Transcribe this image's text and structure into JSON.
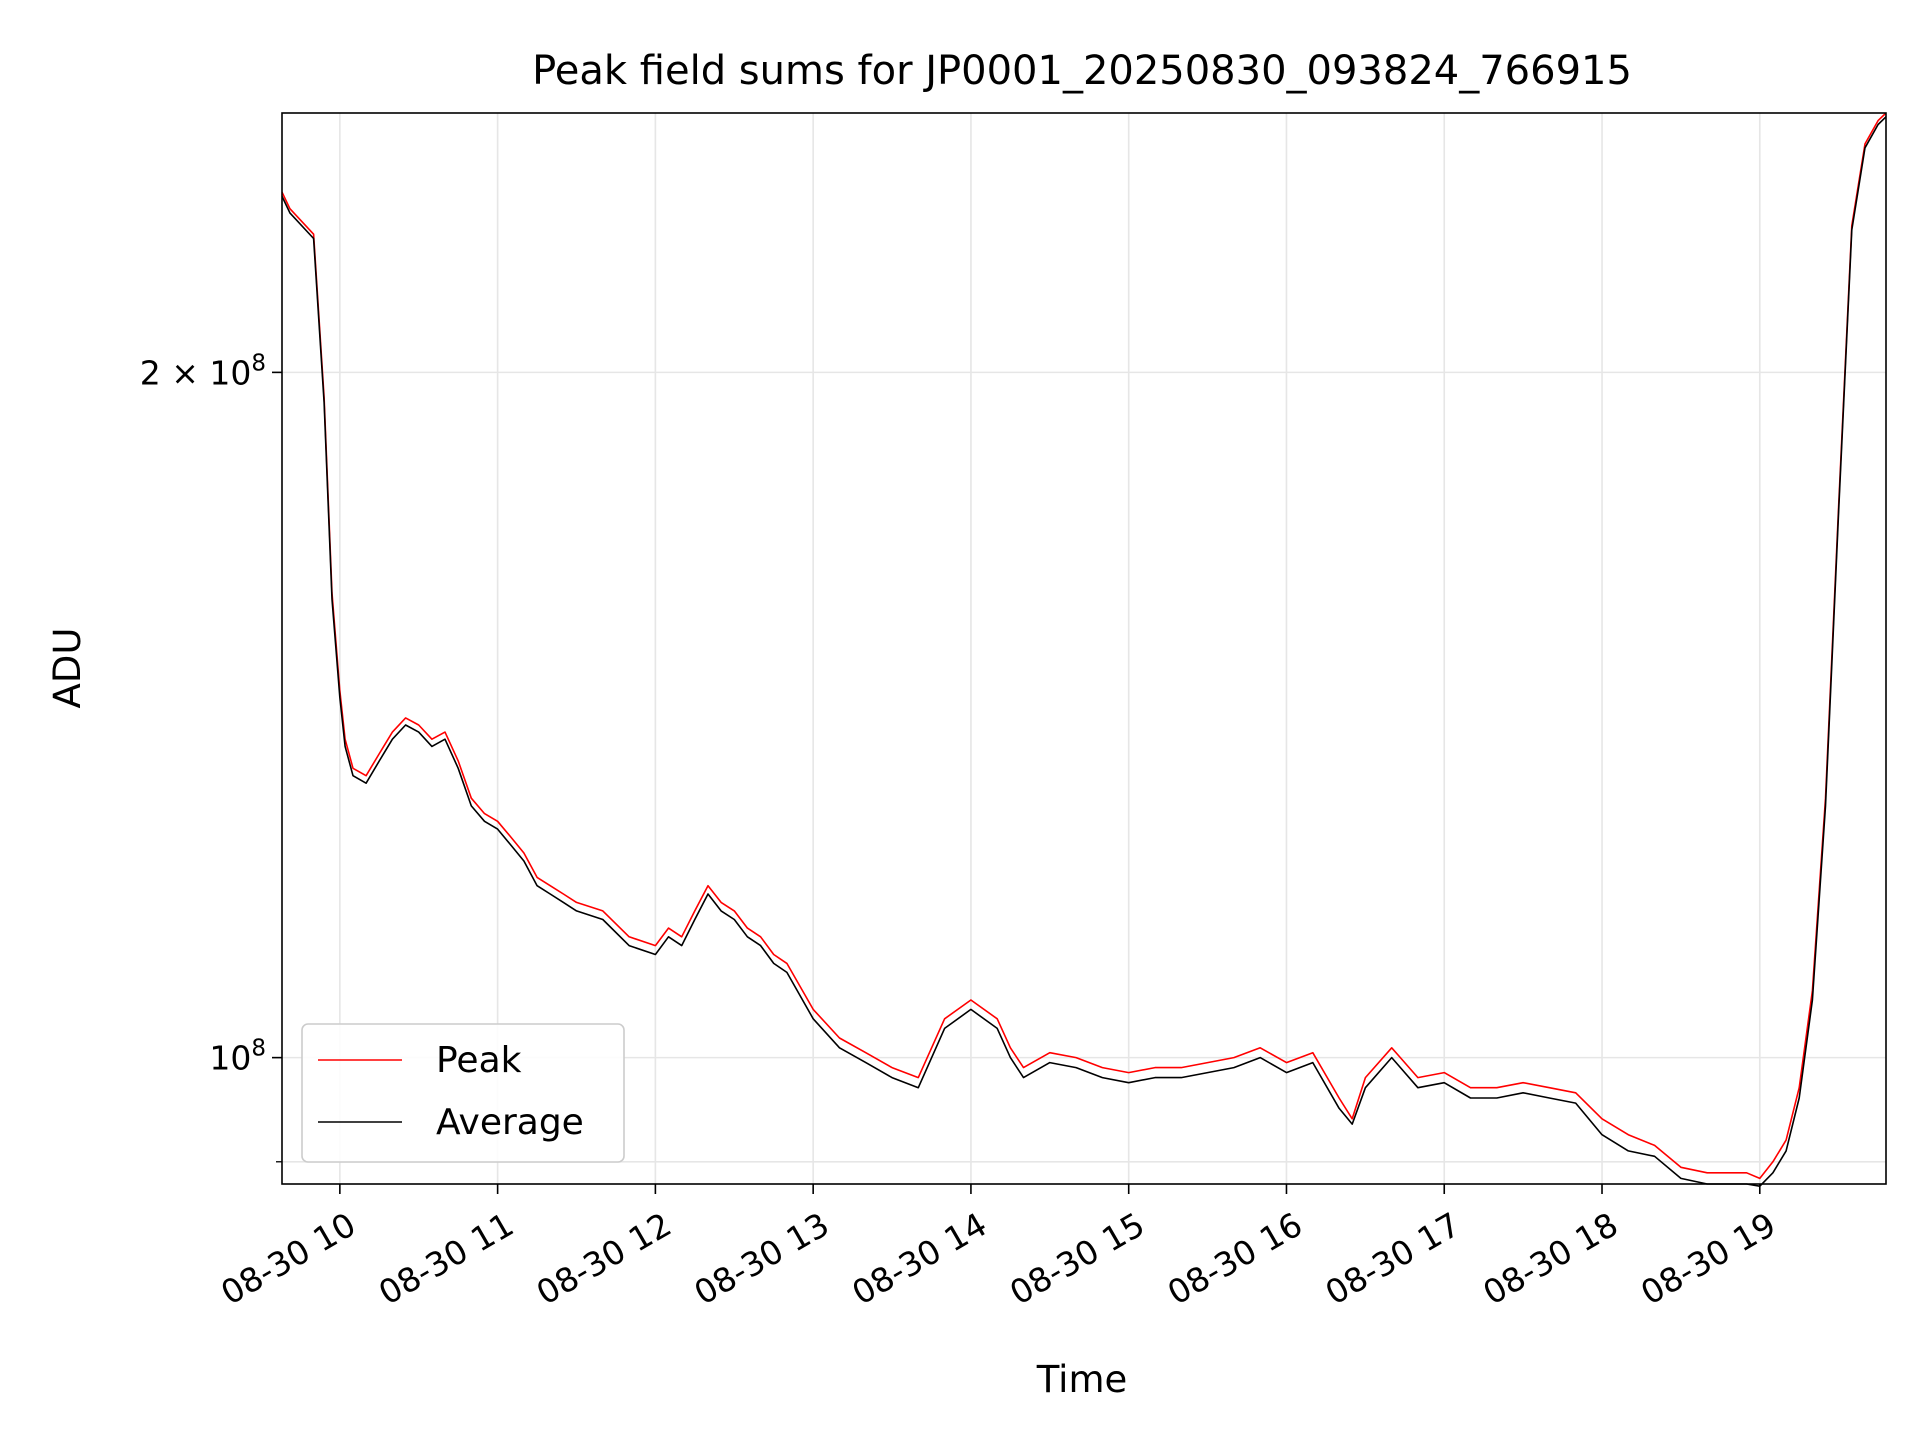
{
  "chart_data": {
    "type": "line",
    "title": "Peak field sums for JP0001_20250830_093824_766915",
    "xlabel": "Time",
    "ylabel": "ADU",
    "yscale": "log",
    "grid": true,
    "legend_position": "lower-left",
    "x_tick_labels": [
      "08-30 10",
      "08-30 11",
      "08-30 12",
      "08-30 13",
      "08-30 14",
      "08-30 15",
      "08-30 16",
      "08-30 17",
      "08-30 18",
      "08-30 19"
    ],
    "y_tick_labels": [
      {
        "value": 100000000,
        "label_base": "10",
        "label_exp": "8"
      },
      {
        "value": 200000000,
        "label_base": "2 × 10",
        "label_exp": "8"
      }
    ],
    "xlim": [
      "2025-08-30 09:38",
      "2025-08-30 19:48"
    ],
    "ylim": [
      88000000,
      260000000
    ],
    "series": [
      {
        "name": "Peak",
        "color": "#ff0000",
        "x": [
          "09:38",
          "09:41",
          "09:50",
          "09:54",
          "09:57",
          "10:00",
          "10:02",
          "10:05",
          "10:10",
          "10:15",
          "10:20",
          "10:25",
          "10:30",
          "10:35",
          "10:40",
          "10:45",
          "10:50",
          "10:55",
          "11:00",
          "11:05",
          "11:10",
          "11:15",
          "11:20",
          "11:25",
          "11:30",
          "11:40",
          "11:50",
          "12:00",
          "12:05",
          "12:10",
          "12:15",
          "12:20",
          "12:25",
          "12:30",
          "12:35",
          "12:40",
          "12:45",
          "12:50",
          "13:00",
          "13:10",
          "13:20",
          "13:30",
          "13:40",
          "13:50",
          "14:00",
          "14:10",
          "14:15",
          "14:20",
          "14:30",
          "14:40",
          "14:50",
          "15:00",
          "15:10",
          "15:20",
          "15:30",
          "15:40",
          "15:50",
          "16:00",
          "16:10",
          "16:20",
          "16:25",
          "16:30",
          "16:40",
          "16:50",
          "17:00",
          "17:10",
          "17:20",
          "17:30",
          "17:40",
          "17:50",
          "18:00",
          "18:10",
          "18:20",
          "18:30",
          "18:40",
          "18:50",
          "18:55",
          "19:00",
          "19:05",
          "19:10",
          "19:15",
          "19:20",
          "19:25",
          "19:30",
          "19:35",
          "19:40",
          "19:45",
          "19:48"
        ],
        "y": [
          240000000,
          236000000,
          230000000,
          195000000,
          160000000,
          145000000,
          138000000,
          134000000,
          133000000,
          136000000,
          139000000,
          141000000,
          140000000,
          138000000,
          139000000,
          135000000,
          130000000,
          128000000,
          127000000,
          125000000,
          123000000,
          120000000,
          119000000,
          118000000,
          117000000,
          116000000,
          113000000,
          112000000,
          114000000,
          113000000,
          116000000,
          119000000,
          117000000,
          116000000,
          114000000,
          113000000,
          111000000,
          110000000,
          105000000,
          102000000,
          100500000,
          99000000,
          98000000,
          104000000,
          106000000,
          104000000,
          101000000,
          99000000,
          100500000,
          100000000,
          99000000,
          98500000,
          99000000,
          99000000,
          99500000,
          100000000,
          101000000,
          99500000,
          100500000,
          96000000,
          94000000,
          98000000,
          101000000,
          98000000,
          98500000,
          97000000,
          97000000,
          97500000,
          97000000,
          96500000,
          94000000,
          92500000,
          91500000,
          89500000,
          89000000,
          89000000,
          89000000,
          88500000,
          90000000,
          92000000,
          97000000,
          107000000,
          130000000,
          175000000,
          232000000,
          252000000,
          258000000,
          260000000
        ]
      },
      {
        "name": "Average",
        "color": "#000000",
        "x": [
          "09:38",
          "09:41",
          "09:50",
          "09:54",
          "09:57",
          "10:00",
          "10:02",
          "10:05",
          "10:10",
          "10:15",
          "10:20",
          "10:25",
          "10:30",
          "10:35",
          "10:40",
          "10:45",
          "10:50",
          "10:55",
          "11:00",
          "11:05",
          "11:10",
          "11:15",
          "11:20",
          "11:25",
          "11:30",
          "11:40",
          "11:50",
          "12:00",
          "12:05",
          "12:10",
          "12:15",
          "12:20",
          "12:25",
          "12:30",
          "12:35",
          "12:40",
          "12:45",
          "12:50",
          "13:00",
          "13:10",
          "13:20",
          "13:30",
          "13:40",
          "13:50",
          "14:00",
          "14:10",
          "14:15",
          "14:20",
          "14:30",
          "14:40",
          "14:50",
          "15:00",
          "15:10",
          "15:20",
          "15:30",
          "15:40",
          "15:50",
          "16:00",
          "16:10",
          "16:20",
          "16:25",
          "16:30",
          "16:40",
          "16:50",
          "17:00",
          "17:10",
          "17:20",
          "17:30",
          "17:40",
          "17:50",
          "18:00",
          "18:10",
          "18:20",
          "18:30",
          "18:40",
          "18:50",
          "18:55",
          "19:00",
          "19:05",
          "19:10",
          "19:15",
          "19:20",
          "19:25",
          "19:30",
          "19:35",
          "19:40",
          "19:45",
          "19:48"
        ],
        "y": [
          239000000,
          235000000,
          229000000,
          194000000,
          159000000,
          144000000,
          137000000,
          133000000,
          132000000,
          135000000,
          138000000,
          140000000,
          139000000,
          137000000,
          138000000,
          134000000,
          129000000,
          127000000,
          126000000,
          124000000,
          122000000,
          119000000,
          118000000,
          117000000,
          116000000,
          115000000,
          112000000,
          111000000,
          113000000,
          112000000,
          115000000,
          118000000,
          116000000,
          115000000,
          113000000,
          112000000,
          110000000,
          109000000,
          104000000,
          101000000,
          99500000,
          98000000,
          97000000,
          103000000,
          105000000,
          103000000,
          100000000,
          98000000,
          99500000,
          99000000,
          98000000,
          97500000,
          98000000,
          98000000,
          98500000,
          99000000,
          100000000,
          98500000,
          99500000,
          95000000,
          93500000,
          97000000,
          100000000,
          97000000,
          97500000,
          96000000,
          96000000,
          96500000,
          96000000,
          95500000,
          92500000,
          91000000,
          90500000,
          88500000,
          88000000,
          88000000,
          88000000,
          87800000,
          89000000,
          91000000,
          96000000,
          106000000,
          129000000,
          174000000,
          231000000,
          251000000,
          257000000,
          259000000
        ]
      }
    ]
  }
}
